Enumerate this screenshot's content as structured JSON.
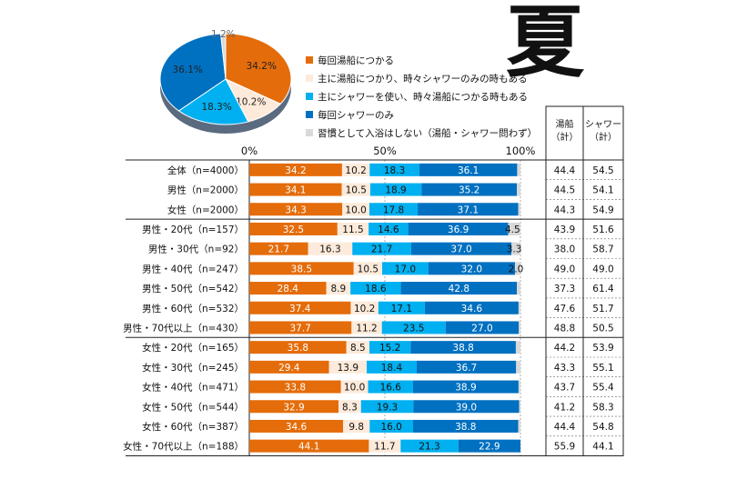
{
  "season_title": "夏",
  "colors": {
    "always_bath": "#E46C0A",
    "mainly_bath": "#FDEADA",
    "mainly_shower": "#00B0F0",
    "always_shower": "#0070C0",
    "no_bathing": "#D9D9D9"
  },
  "chart_data": [
    {
      "type": "pie",
      "title": "",
      "legend_placement": "right",
      "categories": [
        "毎回湯船につかる",
        "主に湯船につかり、時々シャワーのみの時もある",
        "主にシャワーを使い、時々湯船につかる時もある",
        "毎回シャワーのみ",
        "習慣として入浴はしない（湯船・シャワー問わず）"
      ],
      "values": [
        34.2,
        10.2,
        18.3,
        36.1,
        1.2
      ],
      "labels": [
        "34.2%",
        "10.2%",
        "18.3%",
        "36.1%",
        "1.2%"
      ]
    },
    {
      "type": "bar",
      "orientation": "horizontal",
      "stacked": true,
      "title": "",
      "xlim": [
        0,
        100
      ],
      "xticks": [
        "0%",
        "50%",
        "100%"
      ],
      "categories": [
        "全体（n=4000）",
        "男性（n=2000）",
        "女性（n=2000）",
        "男性・20代（n=157）",
        "男性・30代（n=92）",
        "男性・40代（n=247）",
        "男性・50代（n=542）",
        "男性・60代（n=532）",
        "男性・70代以上（n=430）",
        "女性・20代（n=165）",
        "女性・30代（n=245）",
        "女性・40代（n=471）",
        "女性・50代（n=544）",
        "女性・60代（n=387）",
        "女性・70代以上（n=188）"
      ],
      "series": [
        {
          "name": "毎回湯船につかる",
          "values": [
            34.2,
            34.1,
            34.3,
            32.5,
            21.7,
            38.5,
            28.4,
            37.4,
            37.7,
            35.8,
            29.4,
            33.8,
            32.9,
            34.6,
            44.1
          ]
        },
        {
          "name": "主に湯船につかり、時々シャワーのみの時もある",
          "values": [
            10.2,
            10.5,
            10.0,
            11.5,
            16.3,
            10.5,
            8.9,
            10.2,
            11.2,
            8.5,
            13.9,
            10.0,
            8.3,
            9.8,
            11.7
          ]
        },
        {
          "name": "主にシャワーを使い、時々湯船につかる時もある",
          "values": [
            18.3,
            18.9,
            17.8,
            14.6,
            21.7,
            17.0,
            18.6,
            17.1,
            23.5,
            15.2,
            18.4,
            16.6,
            19.3,
            16.0,
            21.3
          ]
        },
        {
          "name": "毎回シャワーのみ",
          "values": [
            36.1,
            35.2,
            37.1,
            36.9,
            37.0,
            32.0,
            42.8,
            34.6,
            27.0,
            38.8,
            36.7,
            38.9,
            39.0,
            38.8,
            22.9
          ]
        },
        {
          "name": "習慣として入浴はしない（湯船・シャワー問わず）",
          "values": [
            1.2,
            1.3,
            0.8,
            4.5,
            3.3,
            2.0,
            1.3,
            0.7,
            0.6,
            1.7,
            1.6,
            0.7,
            0.5,
            0.8,
            0.0
          ]
        }
      ],
      "bar_labels": [
        [
          "34.2",
          "10.2",
          "18.3",
          "36.1",
          ""
        ],
        [
          "34.1",
          "10.5",
          "18.9",
          "35.2",
          ""
        ],
        [
          "34.3",
          "10.0",
          "17.8",
          "37.1",
          ""
        ],
        [
          "32.5",
          "11.5",
          "14.6",
          "36.9",
          "4.5"
        ],
        [
          "21.7",
          "16.3",
          "21.7",
          "37.0",
          "3.3"
        ],
        [
          "38.5",
          "10.5",
          "17.0",
          "32.0",
          "2.0"
        ],
        [
          "28.4",
          "8.9",
          "18.6",
          "42.8",
          ""
        ],
        [
          "37.4",
          "10.2",
          "17.1",
          "34.6",
          ""
        ],
        [
          "37.7",
          "11.2",
          "23.5",
          "27.0",
          ""
        ],
        [
          "35.8",
          "8.5",
          "15.2",
          "38.8",
          ""
        ],
        [
          "29.4",
          "13.9",
          "18.4",
          "36.7",
          ""
        ],
        [
          "33.8",
          "10.0",
          "16.6",
          "38.9",
          ""
        ],
        [
          "32.9",
          "8.3",
          "19.3",
          "39.0",
          ""
        ],
        [
          "34.6",
          "9.8",
          "16.0",
          "38.8",
          ""
        ],
        [
          "44.1",
          "11.7",
          "21.3",
          "22.9",
          ""
        ]
      ]
    },
    {
      "type": "table",
      "headers": [
        "湯船\n（計）",
        "シャワー\n（計）"
      ],
      "rows": [
        [
          "44.4",
          "54.5"
        ],
        [
          "44.5",
          "54.1"
        ],
        [
          "44.3",
          "54.9"
        ],
        [
          "43.9",
          "51.6"
        ],
        [
          "38.0",
          "58.7"
        ],
        [
          "49.0",
          "49.0"
        ],
        [
          "37.3",
          "61.4"
        ],
        [
          "47.6",
          "51.7"
        ],
        [
          "48.8",
          "50.5"
        ],
        [
          "44.2",
          "53.9"
        ],
        [
          "43.3",
          "55.1"
        ],
        [
          "43.7",
          "55.4"
        ],
        [
          "41.2",
          "58.3"
        ],
        [
          "44.4",
          "54.8"
        ],
        [
          "55.9",
          "44.1"
        ]
      ]
    }
  ]
}
